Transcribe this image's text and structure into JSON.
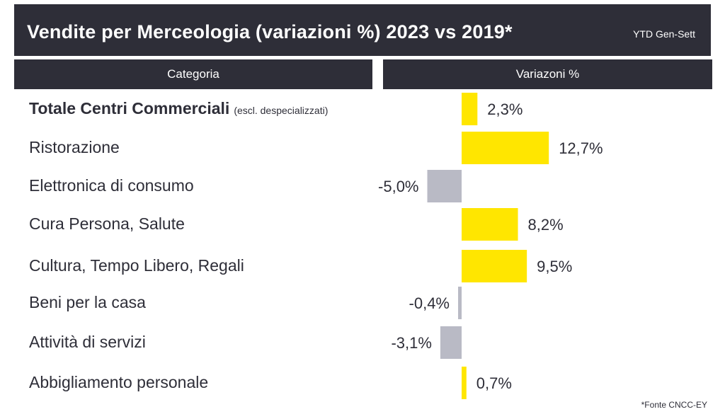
{
  "header": {
    "title": "Vendite per Merceologia (variazioni %) 2023 vs 2019*",
    "period": "YTD Gen-Sett"
  },
  "columns": {
    "category": "Categoria",
    "variation": "Variazoni %"
  },
  "footnote": "*Fonte CNCC-EY",
  "colors": {
    "dark": "#2e2e38",
    "positive": "#ffe600",
    "negative": "#b9bac5"
  },
  "chart_data": {
    "type": "bar",
    "orientation": "horizontal",
    "categories": [
      "Totale Centri Commerciali",
      "Ristorazione",
      "Elettronica di consumo",
      "Cura Persona, Salute",
      "Cultura, Tempo Libero, Regali",
      "Beni per la casa",
      "Attività di servizi",
      "Abbigliamento personale"
    ],
    "category_note": "(escl. despecializzati)",
    "values": [
      2.3,
      12.7,
      -5.0,
      8.2,
      9.5,
      -0.4,
      -3.1,
      0.7
    ],
    "value_labels": [
      "2,3%",
      "12,7%",
      "-5,0%",
      "8,2%",
      "9,5%",
      "-0,4%",
      "-3,1%",
      "0,7%"
    ]
  }
}
